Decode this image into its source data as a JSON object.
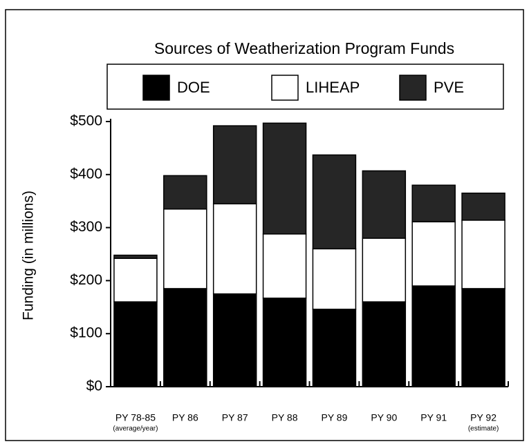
{
  "chart_data": {
    "type": "stacked_bar",
    "title": "Sources of Weatherization Program Funds",
    "ylabel": "Funding (in millions)",
    "categories": [
      "PY 78-85",
      "PY 86",
      "PY 87",
      "PY 88",
      "PY 89",
      "PY 90",
      "PY 91",
      "PY 92"
    ],
    "category_notes": [
      "(average/year)",
      null,
      null,
      null,
      null,
      null,
      null,
      "(estimate)"
    ],
    "series": [
      {
        "name": "DOE",
        "color": "#000000",
        "values": [
          160,
          185,
          175,
          167,
          146,
          160,
          190,
          185
        ]
      },
      {
        "name": "LIHEAP",
        "color": "#ffffff",
        "values": [
          82,
          150,
          170,
          121,
          114,
          120,
          121,
          129
        ]
      },
      {
        "name": "PVE",
        "color": "#262626",
        "values": [
          6,
          63,
          147,
          209,
          177,
          127,
          69,
          51
        ]
      }
    ],
    "ylim": [
      0,
      500
    ],
    "yticks": [
      {
        "value": 0,
        "label": "$0"
      },
      {
        "value": 100,
        "label": "$100"
      },
      {
        "value": 200,
        "label": "$200"
      },
      {
        "value": 300,
        "label": "$300"
      },
      {
        "value": 400,
        "label": "$400"
      },
      {
        "value": 500,
        "label": "$500"
      }
    ],
    "legend": "top"
  }
}
